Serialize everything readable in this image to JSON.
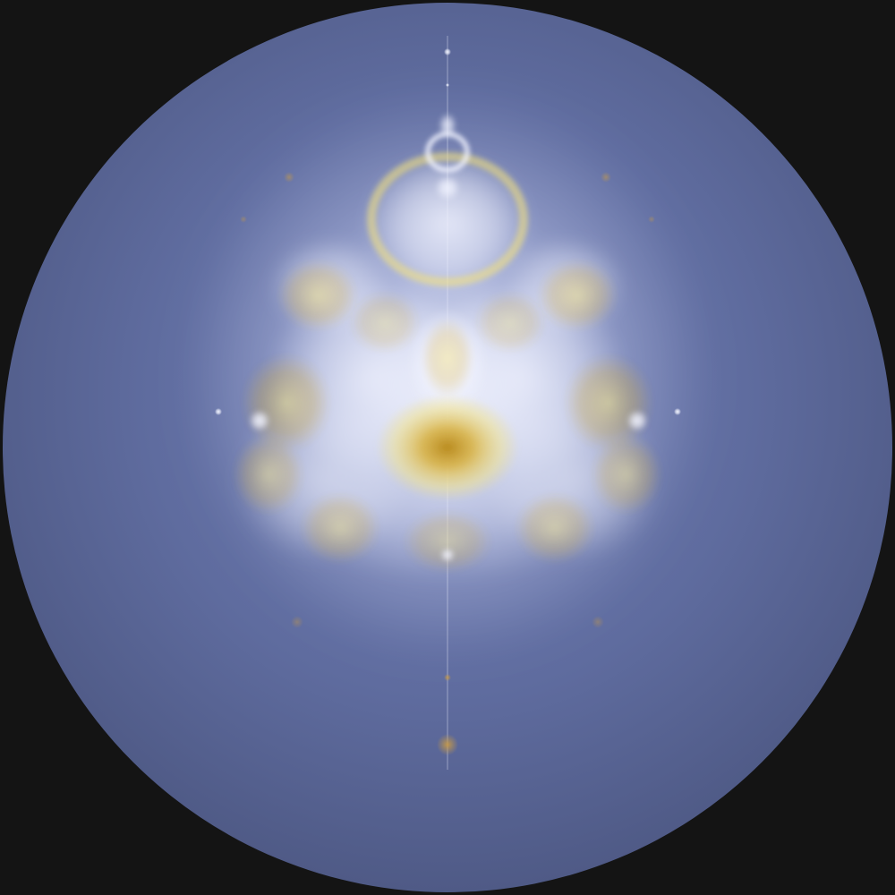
{
  "image": {
    "subject": "buddhabrot-fractal",
    "colors": {
      "frame": "#141414",
      "disc_center": "#6c7ab0",
      "disc_mid": "#5f6c9f",
      "disc_edge": "#4f5a86",
      "glow_white": "#f2f4ff",
      "glow_pale_blue": "#c9d0f2",
      "core_yellow": "#f4e27a",
      "core_gold": "#d8b03c",
      "core_deep": "#b88a1e",
      "node_amber": "#c89a46"
    }
  }
}
